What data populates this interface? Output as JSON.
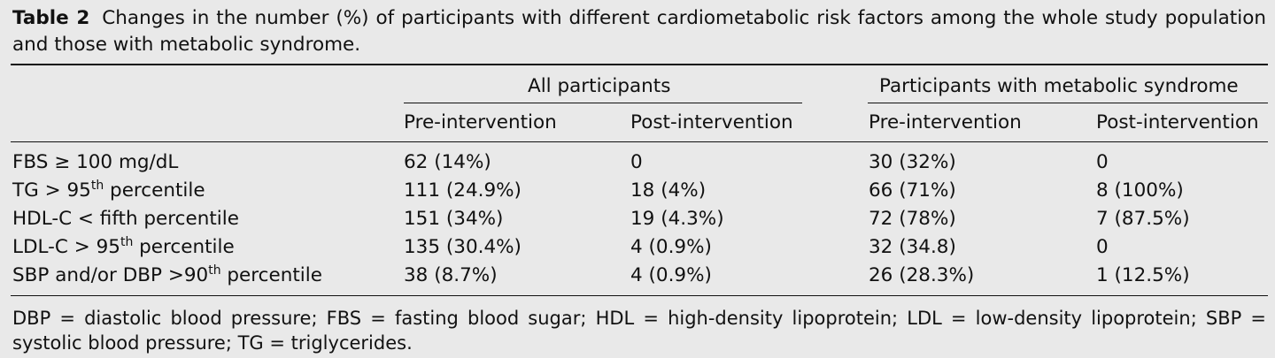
{
  "caption": {
    "label": "Table 2",
    "text": "Changes in the number (%) of participants with different cardiometabolic risk factors among the whole study population and those with metabolic syndrome."
  },
  "header": {
    "group1": "All participants",
    "group2": "Participants with metabolic syndrome",
    "pre": "Pre-intervention",
    "post": "Post-intervention"
  },
  "rows": [
    {
      "label_pre": "FBS ≥ 100 mg/dL",
      "sup": "",
      "label_post": "",
      "c1": "62 (14%)",
      "c2": "0",
      "c3": "30 (32%)",
      "c4": "0"
    },
    {
      "label_pre": "TG > 95",
      "sup": "th",
      "label_post": " percentile",
      "c1": "111 (24.9%)",
      "c2": "18 (4%)",
      "c3": "66 (71%)",
      "c4": "8 (100%)"
    },
    {
      "label_pre": "HDL-C < fifth percentile",
      "sup": "",
      "label_post": "",
      "c1": "151 (34%)",
      "c2": "19 (4.3%)",
      "c3": "72 (78%)",
      "c4": "7 (87.5%)"
    },
    {
      "label_pre": "LDL-C > 95",
      "sup": "th",
      "label_post": " percentile",
      "c1": "135 (30.4%)",
      "c2": "4 (0.9%)",
      "c3": "32 (34.8)",
      "c4": "0"
    },
    {
      "label_pre": "SBP and/or DBP >90",
      "sup": "th",
      "label_post": " percentile",
      "c1": "38 (8.7%)",
      "c2": "4 (0.9%)",
      "c3": "26 (28.3%)",
      "c4": "1 (12.5%)"
    }
  ],
  "footnote": "DBP = diastolic blood pressure; FBS = fasting blood sugar; HDL = high-density lipoprotein; LDL = low-density lipoprotein; SBP = systolic blood pressure; TG = triglycerides."
}
